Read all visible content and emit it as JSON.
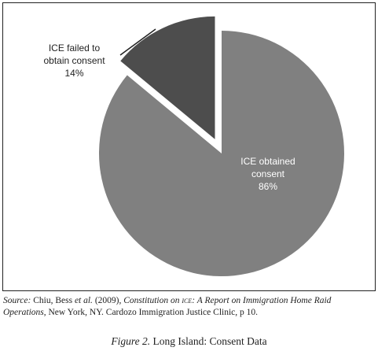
{
  "chart_data": {
    "type": "pie",
    "categories": [
      "ICE obtained consent",
      "ICE failed to obtain consent"
    ],
    "values": [
      86,
      14
    ],
    "value_labels": [
      "86%",
      "14%"
    ],
    "colors": [
      "#808080",
      "#4d4d4d"
    ]
  },
  "source": [
    "Source:",
    " Chiu, Bess ",
    "et al.",
    " (2009), ",
    "Constitution on ",
    "ice",
    ": A Report on Immigration Home Raid Operations",
    ", New York, NY. Cardozo Immigration Justice Clinic, p 10."
  ],
  "caption": {
    "label": "Figure 2.",
    "text": " Long Island: Consent Data"
  }
}
